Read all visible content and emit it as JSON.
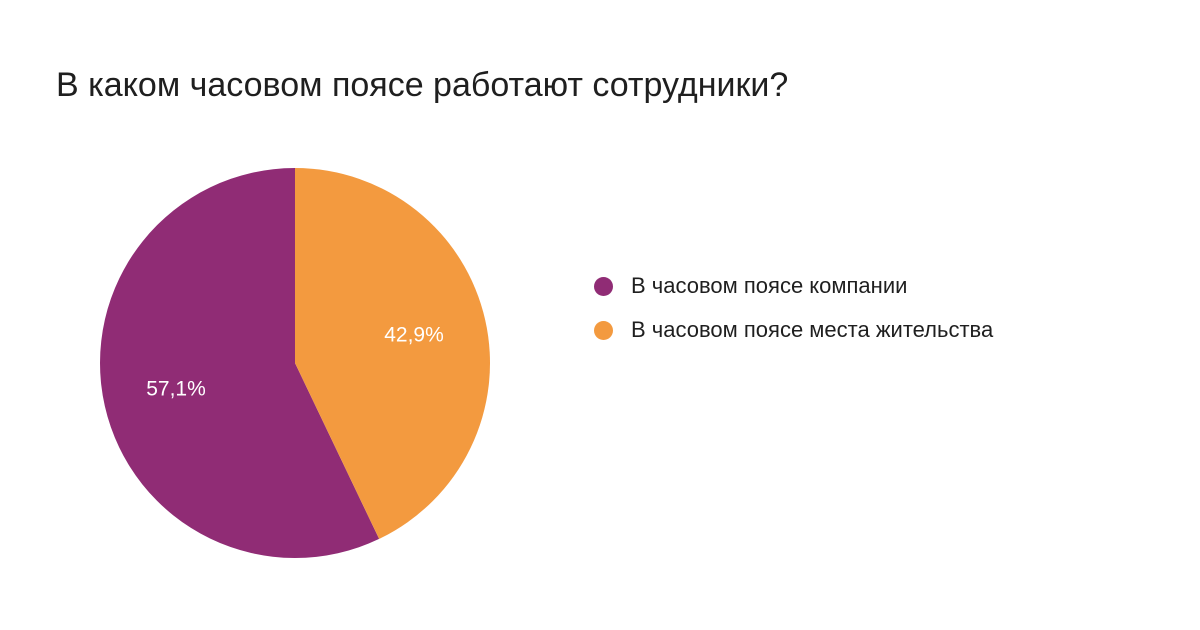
{
  "title": "В каком часовом поясе работают сотрудники?",
  "chart_data": {
    "type": "pie",
    "title": "В каком часовом поясе работают сотрудники?",
    "slices": [
      {
        "name": "В часовом поясе компании",
        "value": 57.1,
        "label": "57,1%",
        "color": "#902c75"
      },
      {
        "name": "В часовом поясе места жительства",
        "value": 42.9,
        "label": "42,9%",
        "color": "#f39a3f"
      }
    ],
    "start_angle_deg": 90,
    "direction": "counterclockwise",
    "legend_position": "right"
  }
}
